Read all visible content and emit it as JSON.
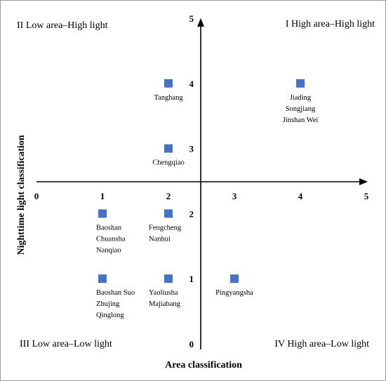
{
  "chart_data": {
    "type": "scatter",
    "xlabel": "Area classification",
    "ylabel": "Nighttime light classification",
    "xlim": [
      0,
      5
    ],
    "ylim": [
      0,
      5
    ],
    "x_ticks": [
      "0",
      "1",
      "2",
      "3",
      "4",
      "5"
    ],
    "y_ticks": [
      "0",
      "1",
      "2",
      "3",
      "4",
      "5"
    ],
    "quadrants": {
      "top_left": "II  Low area–High light",
      "top_right": "I  High area–High light",
      "bottom_left": "III  Low area–Low light",
      "bottom_right": "IV  High area–Low light"
    },
    "marker_color": "#4472C4",
    "points": [
      {
        "x": 2,
        "y": 4,
        "labels": [
          "Tanghang"
        ]
      },
      {
        "x": 4,
        "y": 4,
        "labels": [
          "Jiading",
          "Songjiang",
          "Jinshan Wei"
        ]
      },
      {
        "x": 2,
        "y": 3,
        "labels": [
          "Chengqiao"
        ]
      },
      {
        "x": 1,
        "y": 2,
        "labels": [
          "Baoshan",
          "Chuansha",
          "Nanqiao"
        ]
      },
      {
        "x": 2,
        "y": 2,
        "labels": [
          "Fengcheng",
          "Nanhui"
        ]
      },
      {
        "x": 1,
        "y": 1,
        "labels": [
          "Baoshan Suo",
          "Zhujing",
          "Qinglong"
        ]
      },
      {
        "x": 2,
        "y": 1,
        "labels": [
          "Yaoliusha",
          "Majiabang"
        ]
      },
      {
        "x": 3,
        "y": 1,
        "labels": [
          "Pingyangsha"
        ]
      }
    ]
  }
}
